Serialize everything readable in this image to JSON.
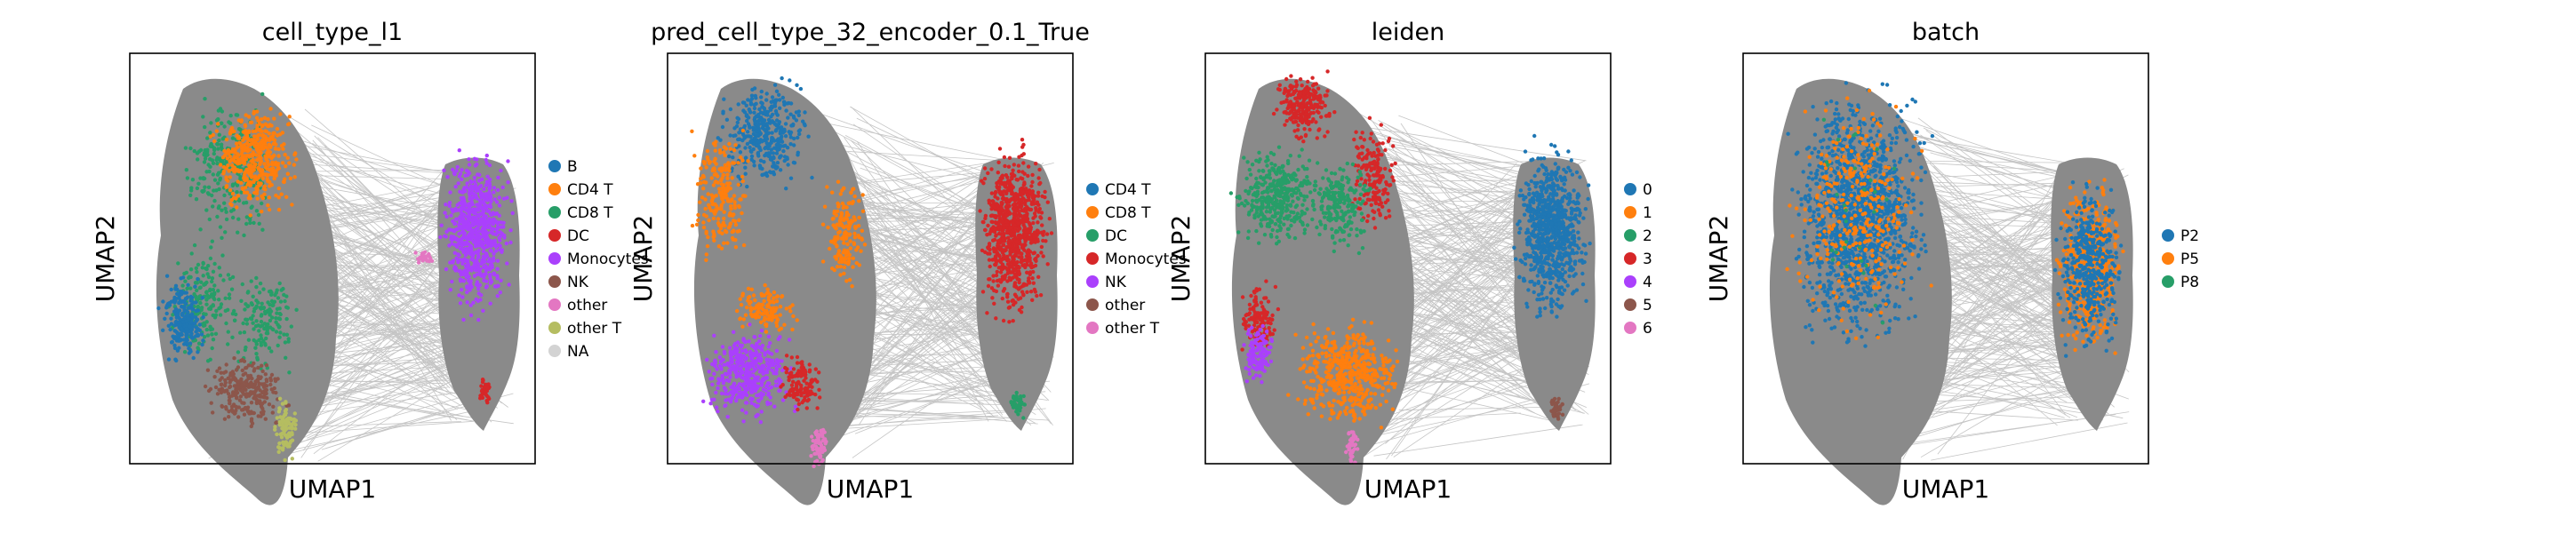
{
  "chart_data": [
    {
      "type": "scatter",
      "title": "cell_type_l1",
      "xlabel": "UMAP1",
      "ylabel": "UMAP2",
      "grid": false,
      "legend_position": "right",
      "series": [
        {
          "name": "B",
          "color": "#1f77b4"
        },
        {
          "name": "CD4 T",
          "color": "#ff7f0e"
        },
        {
          "name": "CD8 T",
          "color": "#279e68"
        },
        {
          "name": "DC",
          "color": "#d62728"
        },
        {
          "name": "Monocytes",
          "color": "#aa40fc"
        },
        {
          "name": "NK",
          "color": "#8c564b"
        },
        {
          "name": "other",
          "color": "#e377c2"
        },
        {
          "name": "other T",
          "color": "#b5bd61"
        },
        {
          "name": "NA",
          "color": "#d3d3d3"
        }
      ]
    },
    {
      "type": "scatter",
      "title": "pred_cell_type_32_encoder_0.1_True",
      "xlabel": "UMAP1",
      "ylabel": "UMAP2",
      "grid": false,
      "legend_position": "right",
      "series": [
        {
          "name": "CD4 T",
          "color": "#1f77b4"
        },
        {
          "name": "CD8 T",
          "color": "#ff7f0e"
        },
        {
          "name": "DC",
          "color": "#279e68"
        },
        {
          "name": "Monocytes",
          "color": "#d62728"
        },
        {
          "name": "NK",
          "color": "#aa40fc"
        },
        {
          "name": "other",
          "color": "#8c564b"
        },
        {
          "name": "other T",
          "color": "#e377c2"
        }
      ]
    },
    {
      "type": "scatter",
      "title": "leiden",
      "xlabel": "UMAP1",
      "ylabel": "UMAP2",
      "grid": false,
      "legend_position": "right",
      "series": [
        {
          "name": "0",
          "color": "#1f77b4"
        },
        {
          "name": "1",
          "color": "#ff7f0e"
        },
        {
          "name": "2",
          "color": "#279e68"
        },
        {
          "name": "3",
          "color": "#d62728"
        },
        {
          "name": "4",
          "color": "#aa40fc"
        },
        {
          "name": "5",
          "color": "#8c564b"
        },
        {
          "name": "6",
          "color": "#e377c2"
        }
      ]
    },
    {
      "type": "scatter",
      "title": "batch",
      "xlabel": "UMAP1",
      "ylabel": "UMAP2",
      "grid": false,
      "legend_position": "right",
      "series": [
        {
          "name": "P2",
          "color": "#1f77b4"
        },
        {
          "name": "P5",
          "color": "#ff7f0e"
        },
        {
          "name": "P8",
          "color": "#279e68"
        }
      ]
    }
  ]
}
